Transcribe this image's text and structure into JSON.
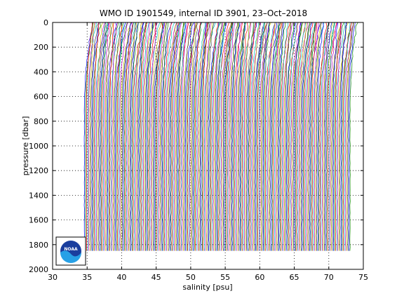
{
  "chart_data": {
    "type": "line",
    "title": "WMO ID 1901549, internal ID 3901, 23–Oct–2018",
    "xlabel": "salinity [psu]",
    "ylabel": "pressure [dbar]",
    "xlim": [
      30,
      75
    ],
    "ylim": [
      0,
      2000
    ],
    "y_reversed": true,
    "xticks": [
      30,
      35,
      40,
      45,
      50,
      55,
      60,
      65,
      70,
      75
    ],
    "yticks": [
      0,
      200,
      400,
      600,
      800,
      1000,
      1200,
      1400,
      1600,
      1800,
      2000
    ],
    "grid": true,
    "series_description": "about 240 offset salinity profiles (0 to 1850 dbar), each shifted in salinity, spanning 34.6 to 73.5 psu",
    "profile_count": 240,
    "profile_start_salinity": 34.6,
    "profile_offset": 0.161,
    "profile_max_pressure": 1850,
    "colors": [
      "#0000ff",
      "#008000",
      "#ff0000",
      "#00bfbf",
      "#bf00bf",
      "#bfbf00",
      "#404040"
    ]
  },
  "logo": {
    "text": "NOAA",
    "name": "noaa-logo"
  }
}
